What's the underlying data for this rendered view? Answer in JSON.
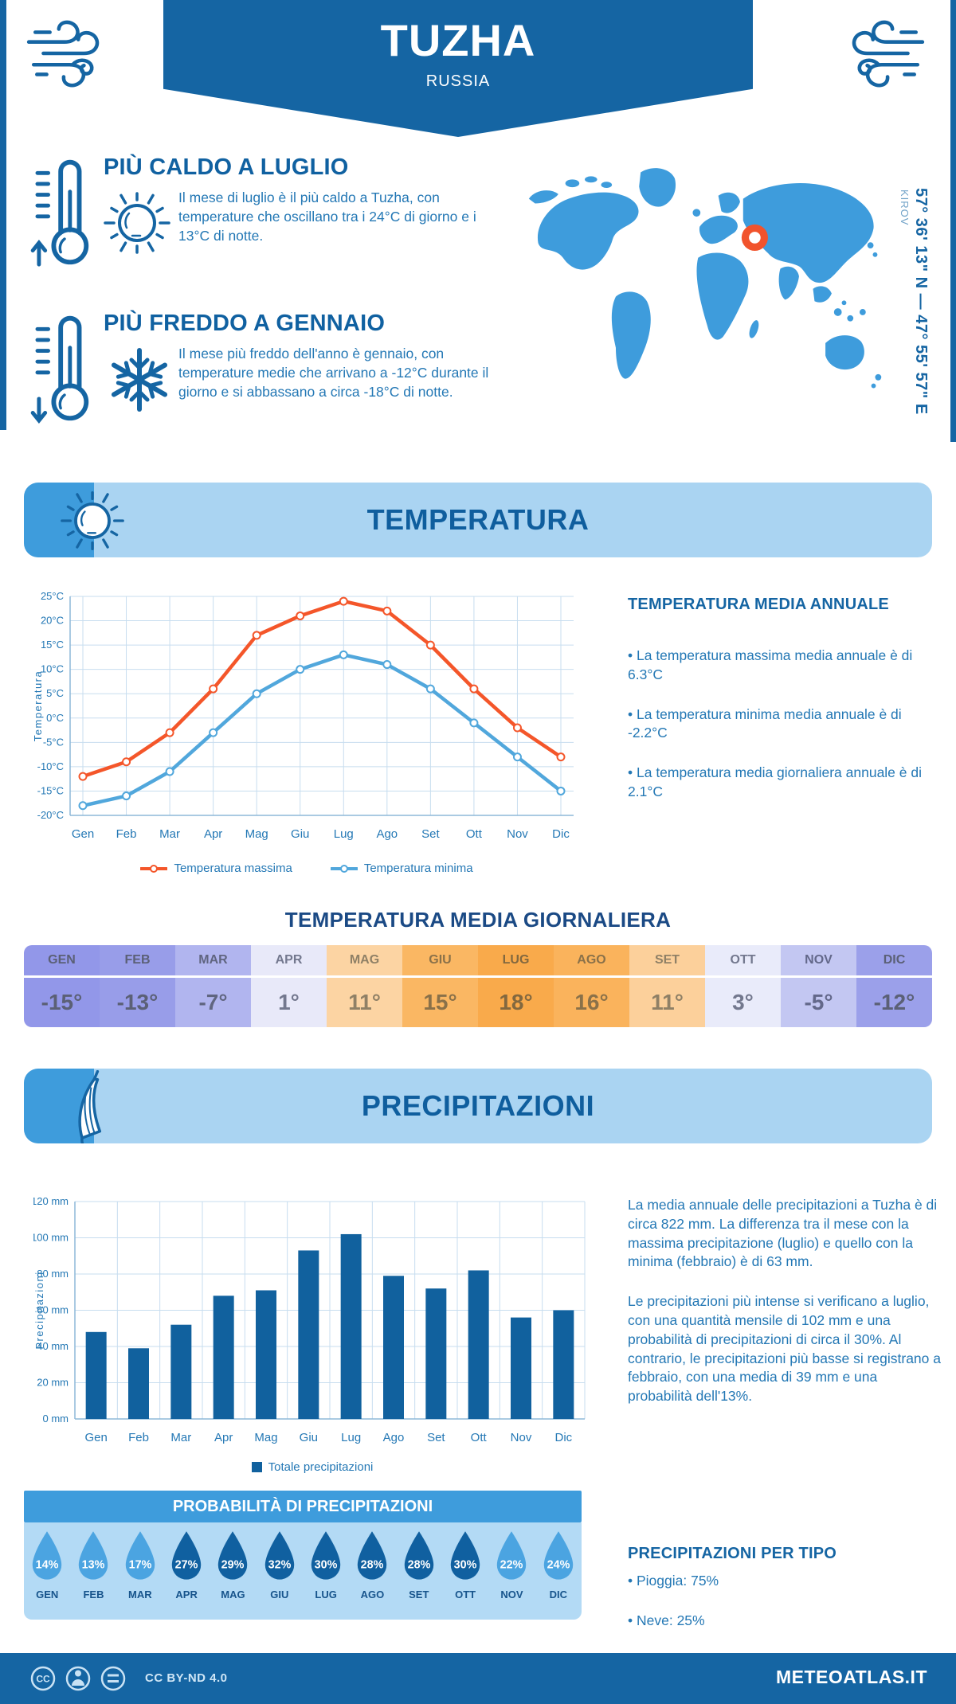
{
  "header": {
    "title": "TUZHA",
    "subtitle": "RUSSIA"
  },
  "location": {
    "coordinates": "57° 36' 13\" N — 47° 55' 57\" E",
    "region": "KIROV"
  },
  "highlights": {
    "hot": {
      "title": "PIÙ CALDO A LUGLIO",
      "body": "Il mese di luglio è il più caldo a Tuzha, con temperature che oscillano tra i 24°C di giorno e i 13°C di notte."
    },
    "cold": {
      "title": "PIÙ FREDDO A GENNAIO",
      "body": "Il mese più freddo dell'anno è gennaio, con temperature medie che arrivano a -12°C durante il giorno e si abbassano a circa -18°C di notte."
    }
  },
  "temperature": {
    "band_title": "TEMPERATURA",
    "annual_title": "TEMPERATURA MEDIA ANNUALE",
    "bullets": [
      "• La temperatura massima media annuale è di 6.3°C",
      "• La temperatura minima media annuale è di -2.2°C",
      "• La temperatura media giornaliera annuale è di 2.1°C"
    ],
    "daily_title": "TEMPERATURA MEDIA GIORNALIERA",
    "daily": [
      {
        "label": "GEN",
        "value": "-15°",
        "bg": "#9297e9",
        "fg": "#5b6076"
      },
      {
        "label": "FEB",
        "value": "-13°",
        "bg": "#989de9",
        "fg": "#5b6076"
      },
      {
        "label": "MAR",
        "value": "-7°",
        "bg": "#b1b5ef",
        "fg": "#606580"
      },
      {
        "label": "APR",
        "value": "1°",
        "bg": "#e8e9f9",
        "fg": "#73788e"
      },
      {
        "label": "MAG",
        "value": "11°",
        "bg": "#fcd4a3",
        "fg": "#8f8066"
      },
      {
        "label": "GIU",
        "value": "15°",
        "bg": "#fab763",
        "fg": "#8a7149"
      },
      {
        "label": "LUG",
        "value": "18°",
        "bg": "#f9aa4b",
        "fg": "#82683f"
      },
      {
        "label": "AGO",
        "value": "16°",
        "bg": "#fab35c",
        "fg": "#8a7149"
      },
      {
        "label": "SET",
        "value": "11°",
        "bg": "#fcd09b",
        "fg": "#8f8066"
      },
      {
        "label": "OTT",
        "value": "3°",
        "bg": "#e9ebfa",
        "fg": "#73788e"
      },
      {
        "label": "NOV",
        "value": "-5°",
        "bg": "#c3c7f2",
        "fg": "#63688a"
      },
      {
        "label": "DIC",
        "value": "-12°",
        "bg": "#9ba0ea",
        "fg": "#5b6076"
      }
    ]
  },
  "precipitation": {
    "band_title": "PRECIPITAZIONI",
    "paragraphs": [
      "La media annuale delle precipitazioni a Tuzha è di circa 822 mm. La differenza tra il mese con la massima precipitazione (luglio) e quello con la minima (febbraio) è di 63 mm.",
      "Le precipitazioni più intense si verificano a luglio, con una quantità mensile di 102 mm e una probabilità di precipitazioni di circa il 30%. Al contrario, le precipitazioni più basse si registrano a febbraio, con una media di 39 mm e una probabilità dell'13%."
    ],
    "legend": "Totale precipitazioni",
    "probability_title": "PROBABILITÀ DI PRECIPITAZIONI",
    "probability": [
      {
        "label": "GEN",
        "value": "14%",
        "dark": false
      },
      {
        "label": "FEB",
        "value": "13%",
        "dark": false
      },
      {
        "label": "MAR",
        "value": "17%",
        "dark": false
      },
      {
        "label": "APR",
        "value": "27%",
        "dark": true
      },
      {
        "label": "MAG",
        "value": "29%",
        "dark": true
      },
      {
        "label": "GIU",
        "value": "32%",
        "dark": true
      },
      {
        "label": "LUG",
        "value": "30%",
        "dark": true
      },
      {
        "label": "AGO",
        "value": "28%",
        "dark": true
      },
      {
        "label": "SET",
        "value": "28%",
        "dark": true
      },
      {
        "label": "OTT",
        "value": "30%",
        "dark": true
      },
      {
        "label": "NOV",
        "value": "22%",
        "dark": false
      },
      {
        "label": "DIC",
        "value": "24%",
        "dark": false
      }
    ],
    "type_title": "PRECIPITAZIONI PER TIPO",
    "types": [
      "• Pioggia: 75%",
      "• Neve: 25%"
    ]
  },
  "footer": {
    "license": "CC BY-ND 4.0",
    "brand": "METEOATLAS.IT"
  },
  "colors": {
    "primary": "#1565a3",
    "accent": "#3e9cdc",
    "band_bg": "#aad4f2",
    "droplet_area_bg": "#b3daf5",
    "droplet_light": "#4ba4e1",
    "droplet_dark": "#1060a0",
    "body_text": "#2478b5",
    "heading_text": "#1061a1",
    "map_blue": "#3e9cdc",
    "marker_orange": "#f1532c"
  },
  "chart_data": [
    {
      "type": "line",
      "x": [
        "Gen",
        "Feb",
        "Mar",
        "Apr",
        "Mag",
        "Giu",
        "Lug",
        "Ago",
        "Set",
        "Ott",
        "Nov",
        "Dic"
      ],
      "ylabel": "Temperatura",
      "ylim": [
        -20,
        25
      ],
      "ytick_step": 5,
      "ytick_suffix": "°C",
      "grid": true,
      "legend_position": "bottom",
      "series": [
        {
          "name": "Temperatura massima",
          "color": "#f4562a",
          "values": [
            -12,
            -9,
            -3,
            6,
            17,
            21,
            24,
            22,
            15,
            6,
            -2,
            -8
          ]
        },
        {
          "name": "Temperatura minima",
          "color": "#51a7dc",
          "values": [
            -18,
            -16,
            -11,
            -3,
            5,
            10,
            13,
            11,
            6,
            -1,
            -8,
            -15
          ]
        }
      ]
    },
    {
      "type": "bar",
      "categories": [
        "Gen",
        "Feb",
        "Mar",
        "Apr",
        "Mag",
        "Giu",
        "Lug",
        "Ago",
        "Set",
        "Ott",
        "Nov",
        "Dic"
      ],
      "values": [
        48,
        39,
        52,
        68,
        71,
        93,
        102,
        79,
        72,
        82,
        56,
        60
      ],
      "title": "",
      "xlabel": "",
      "ylabel": "Precipitazioni",
      "ylim": [
        0,
        120
      ],
      "ytick_step": 20,
      "ytick_suffix": " mm",
      "grid": true,
      "bar_color": "#11619e",
      "legend": "Totale precipitazioni",
      "annual_total_mm": 822
    }
  ]
}
